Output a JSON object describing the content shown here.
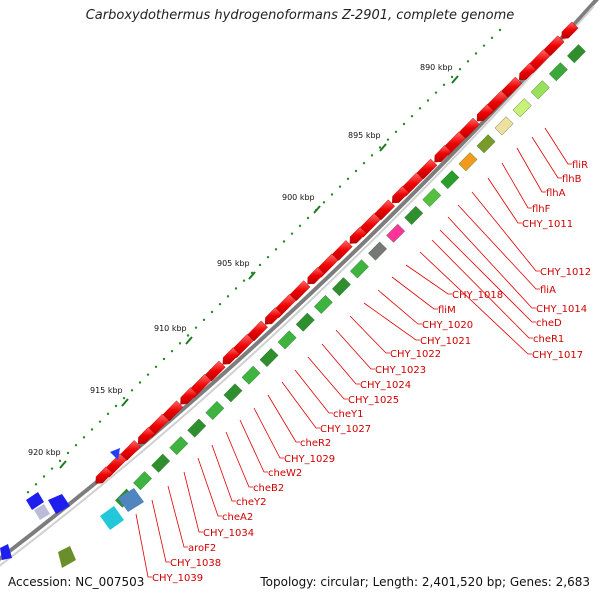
{
  "title": "Carboxydothermus hydrogenoformans Z-2901, complete genome",
  "footer": {
    "accession": "Accession: NC_007503",
    "summary": "Topology: circular; Length: 2,401,520 bp; Genes: 2,683"
  },
  "ticks": [
    {
      "label": "890 kbp"
    },
    {
      "label": "895 kbp"
    },
    {
      "label": "900 kbp"
    },
    {
      "label": "905 kbp"
    },
    {
      "label": "910 kbp"
    },
    {
      "label": "915 kbp"
    },
    {
      "label": "920 kbp"
    }
  ],
  "genes": [
    "fliR",
    "flhB",
    "flhA",
    "flhF",
    "CHY_1011",
    "CHY_1012",
    "fliA",
    "CHY_1014",
    "cheD",
    "cheR1",
    "CHY_1017",
    "CHY_1018",
    "fliM",
    "CHY_1020",
    "CHY_1021",
    "CHY_1022",
    "CHY_1023",
    "CHY_1024",
    "CHY_1025",
    "cheY1",
    "CHY_1027",
    "cheR2",
    "CHY_1029",
    "cheW2",
    "cheB2",
    "cheY2",
    "cheA2",
    "CHY_1034",
    "aroF2",
    "CHY_1038",
    "CHY_1039"
  ],
  "colors": {
    "backbone": "#8c8c8c",
    "cds_forward": "#ff0000",
    "cds_reverse": "#2a9d2a",
    "label": "#d00000",
    "tick": "#1d7a1d"
  }
}
